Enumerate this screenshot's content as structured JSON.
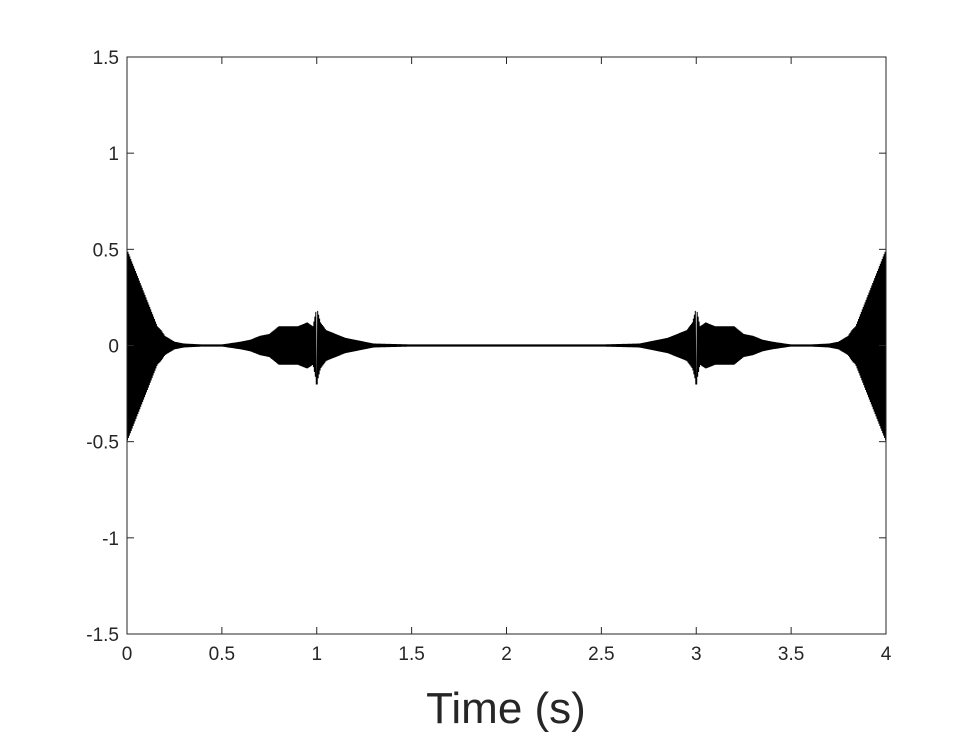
{
  "chart_data": {
    "type": "line",
    "title": "",
    "xlabel": "Time (s)",
    "ylabel": "",
    "xlim": [
      0,
      4
    ],
    "ylim": [
      -1.5,
      1.5
    ],
    "xticks": [
      0,
      0.5,
      1,
      1.5,
      2,
      2.5,
      3,
      3.5,
      4
    ],
    "xtick_labels": [
      "0",
      "0.5",
      "1",
      "1.5",
      "2",
      "2.5",
      "3",
      "3.5",
      "4"
    ],
    "yticks": [
      -1.5,
      -1,
      -0.5,
      0,
      0.5,
      1,
      1.5
    ],
    "ytick_labels": [
      "-1.5",
      "-1",
      "-0.5",
      "0",
      "0.5",
      "1",
      "1.5"
    ],
    "grid": false,
    "series": [
      {
        "color": "#000000",
        "description": "symmetric oscillatory signal: decaying burst at t=0 (amplitude ~0.5), wave packets around t=0.8-1.2 and t=2.8-3.2 with spikes to about -0.2 near t=1 and t=3, growing burst at t=4 (amplitude ~0.5)",
        "x": [
          0,
          0.02,
          0.04,
          0.06,
          0.08,
          0.1,
          0.12,
          0.14,
          0.16,
          0.18,
          0.2,
          0.25,
          0.3,
          0.4,
          0.5,
          0.6,
          0.65,
          0.7,
          0.75,
          0.8,
          0.85,
          0.9,
          0.95,
          0.98,
          1.0,
          1.02,
          1.05,
          1.1,
          1.15,
          1.2,
          1.3,
          1.5,
          1.75,
          2.0,
          2.25,
          2.5,
          2.7,
          2.8,
          2.85,
          2.9,
          2.95,
          2.98,
          3.0,
          3.02,
          3.05,
          3.1,
          3.15,
          3.2,
          3.25,
          3.3,
          3.35,
          3.4,
          3.5,
          3.6,
          3.7,
          3.75,
          3.8,
          3.82,
          3.84,
          3.86,
          3.88,
          3.9,
          3.92,
          3.94,
          3.96,
          3.98,
          4.0
        ],
        "y": [
          0.5,
          -0.45,
          0.4,
          -0.35,
          0.3,
          -0.25,
          0.2,
          -0.15,
          0.1,
          -0.08,
          0.05,
          0.02,
          0.01,
          0.005,
          0.005,
          0.02,
          0.03,
          0.05,
          -0.06,
          0.1,
          -0.1,
          0.1,
          -0.12,
          0.1,
          -0.2,
          0.12,
          -0.08,
          0.06,
          -0.04,
          0.03,
          0.01,
          0.005,
          0.005,
          0.005,
          0.005,
          0.005,
          0.01,
          0.03,
          -0.04,
          0.06,
          -0.08,
          0.12,
          -0.2,
          0.1,
          -0.12,
          0.1,
          -0.1,
          0.1,
          -0.06,
          0.05,
          0.03,
          0.02,
          0.005,
          0.005,
          0.01,
          0.02,
          0.05,
          -0.08,
          0.1,
          -0.15,
          0.2,
          -0.25,
          0.3,
          -0.35,
          0.4,
          -0.45,
          0.5
        ]
      }
    ]
  }
}
